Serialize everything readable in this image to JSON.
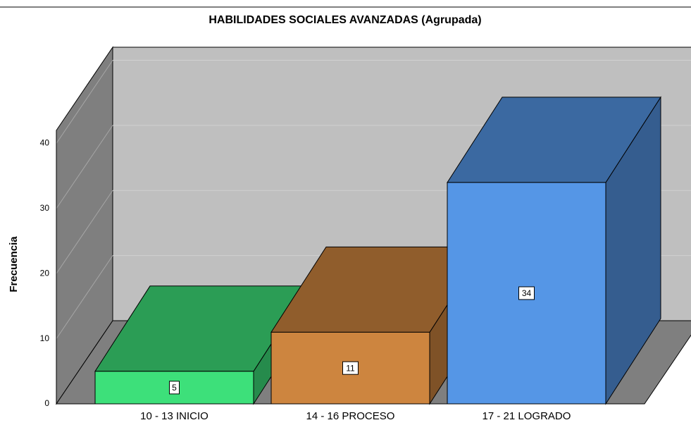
{
  "chart_data": {
    "type": "bar3d",
    "title": "HABILIDADES SOCIALES AVANZADAS (Agrupada)",
    "y_label": "Frecuencia",
    "categories": [
      "10 - 13 INICIO",
      "14 - 16 PROCESO",
      "17 - 21 LOGRADO"
    ],
    "values": [
      5,
      11,
      34
    ],
    "colors": [
      "#3de07a",
      "#cd853f",
      "#5596e6"
    ],
    "ylim": [
      0,
      42
    ],
    "yticks": [
      0,
      10,
      20,
      30,
      40
    ],
    "grid": true
  }
}
